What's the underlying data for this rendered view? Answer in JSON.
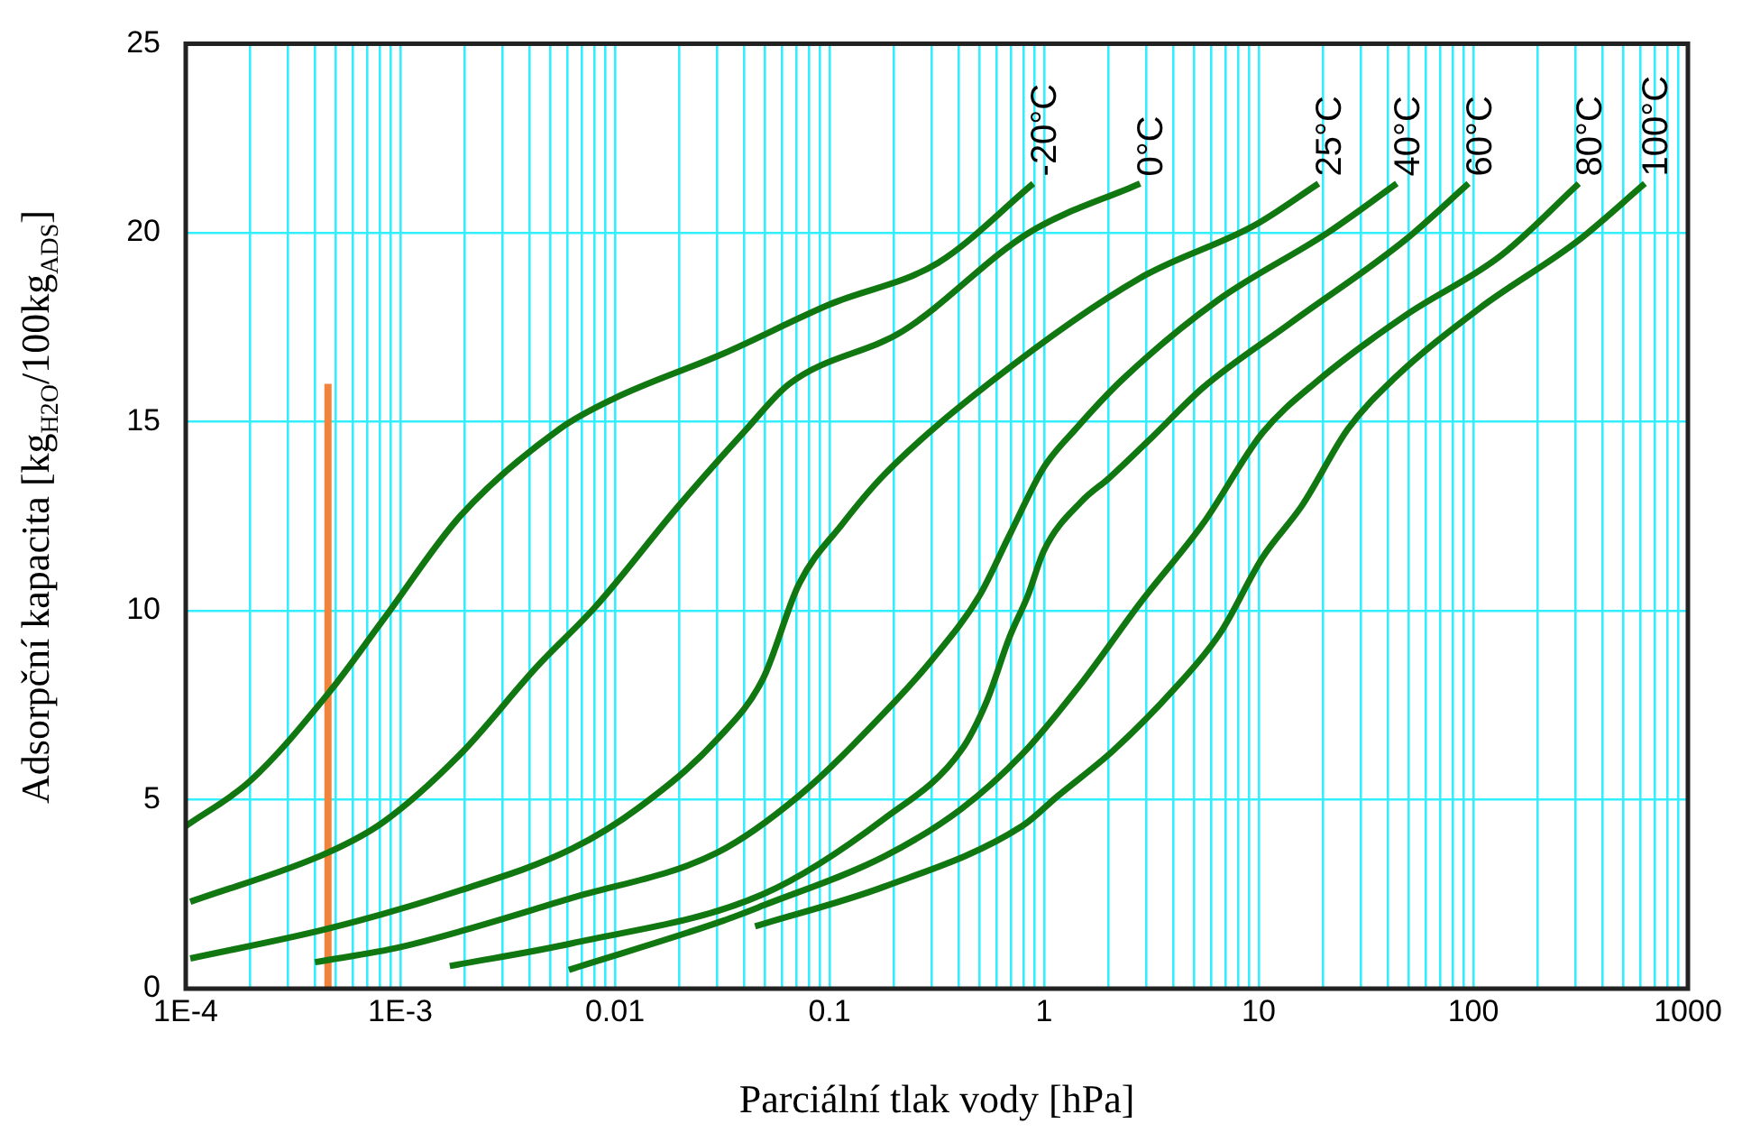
{
  "chart_data": {
    "type": "line",
    "xlabel": "Parciální tlak vody [hPa]",
    "ylabel": "Adsorpční kapacita [kg$_{H2O}$/100kg$_{ADS}$]",
    "log": "x",
    "grid": true,
    "legend": false,
    "marker": "none",
    "line_style": "solid",
    "xlim": [
      0.0001,
      1000
    ],
    "ylim": [
      0,
      25
    ],
    "yticks": [
      0,
      5,
      10,
      15,
      20,
      25
    ],
    "xticks": [
      {
        "value": 0.0001,
        "label": "1E-4"
      },
      {
        "value": 0.0002,
        "label": null
      },
      {
        "value": 0.0003,
        "label": null
      },
      {
        "value": 0.0004,
        "label": null
      },
      {
        "value": 0.0005,
        "label": null
      },
      {
        "value": 0.0006,
        "label": null
      },
      {
        "value": 0.0007,
        "label": null
      },
      {
        "value": 0.0008,
        "label": null
      },
      {
        "value": 0.0009,
        "label": null
      },
      {
        "value": 0.001,
        "label": "1E-3"
      },
      {
        "value": 0.002,
        "label": null
      },
      {
        "value": 0.003,
        "label": null
      },
      {
        "value": 0.004,
        "label": null
      },
      {
        "value": 0.005,
        "label": null
      },
      {
        "value": 0.006,
        "label": null
      },
      {
        "value": 0.007,
        "label": null
      },
      {
        "value": 0.008,
        "label": null
      },
      {
        "value": 0.009,
        "label": null
      },
      0.01,
      {
        "value": 0.02,
        "label": null
      },
      {
        "value": 0.03,
        "label": null
      },
      {
        "value": 0.04,
        "label": null
      },
      {
        "value": 0.05,
        "label": null
      },
      {
        "value": 0.06,
        "label": null
      },
      {
        "value": 0.07,
        "label": null
      },
      {
        "value": 0.08,
        "label": null
      },
      {
        "value": 0.09,
        "label": null
      },
      0.1,
      {
        "value": 0.2,
        "label": null
      },
      {
        "value": 0.3,
        "label": null
      },
      {
        "value": 0.4,
        "label": null
      },
      {
        "value": 0.5,
        "label": null
      },
      {
        "value": 0.6,
        "label": null
      },
      {
        "value": 0.7,
        "label": null
      },
      {
        "value": 0.8,
        "label": null
      },
      {
        "value": 0.9,
        "label": null
      },
      1,
      {
        "value": 2,
        "label": null
      },
      {
        "value": 3,
        "label": null
      },
      {
        "value": 4,
        "label": null
      },
      {
        "value": 5,
        "label": null
      },
      {
        "value": 6,
        "label": null
      },
      {
        "value": 7,
        "label": null
      },
      {
        "value": 8,
        "label": null
      },
      {
        "value": 9,
        "label": null
      },
      10,
      {
        "value": 20,
        "label": null
      },
      {
        "value": 30,
        "label": null
      },
      {
        "value": 40,
        "label": null
      },
      {
        "value": 50,
        "label": null
      },
      {
        "value": 60,
        "label": null
      },
      {
        "value": 70,
        "label": null
      },
      {
        "value": 80,
        "label": null
      },
      {
        "value": 90,
        "label": null
      },
      100,
      {
        "value": 200,
        "label": null
      },
      {
        "value": 300,
        "label": null
      },
      {
        "value": 400,
        "label": null
      },
      {
        "value": 500,
        "label": null
      },
      {
        "value": 600,
        "label": null
      },
      {
        "value": 700,
        "label": null
      },
      {
        "value": 800,
        "label": null
      },
      {
        "value": 900,
        "label": null
      },
      1000
    ],
    "series": [
      {
        "name": "-20°C",
        "color": "#117711",
        "x": [
          0.0001,
          0.0002,
          0.00046,
          0.00083,
          0.0019,
          0.0055,
          0.0098,
          0.032,
          0.1,
          0.32,
          0.89
        ],
        "values": [
          4.3,
          5.5,
          7.8,
          9.75,
          12.5,
          14.8,
          15.6,
          16.8,
          18.1,
          19.2,
          21.3
        ]
      },
      {
        "name": "0°C",
        "color": "#117711",
        "x": [
          0.000105,
          0.00046,
          0.00083,
          0.0019,
          0.0043,
          0.0081,
          0.02,
          0.041,
          0.065,
          0.22,
          0.85,
          2.8
        ],
        "values": [
          2.3,
          3.6,
          4.4,
          6.2,
          8.5,
          10.1,
          12.8,
          14.8,
          16.0,
          17.4,
          20.0,
          21.3
        ]
      },
      {
        "name": "25°C",
        "color": "#117711",
        "x": [
          0.000105,
          0.00047,
          0.0019,
          0.0063,
          0.013,
          0.03,
          0.049,
          0.072,
          0.115,
          0.18,
          0.58,
          2.8,
          9.6,
          19
        ],
        "values": [
          0.8,
          1.6,
          2.6,
          3.7,
          4.8,
          6.6,
          8.2,
          10.7,
          12.3,
          13.6,
          16.1,
          18.8,
          20.2,
          21.3
        ]
      },
      {
        "name": "40°C",
        "color": "#117711",
        "x": [
          0.0004,
          0.001,
          0.0063,
          0.03,
          0.072,
          0.18,
          0.3,
          0.5,
          0.69,
          1.0,
          1.4,
          2.3,
          6.4,
          21,
          44
        ],
        "values": [
          0.7,
          1.1,
          2.4,
          3.6,
          5.1,
          7.3,
          8.7,
          10.4,
          12.0,
          13.8,
          14.8,
          16.1,
          18.2,
          20.0,
          21.3
        ]
      },
      {
        "name": "60°C",
        "color": "#117711",
        "x": [
          0.0017,
          0.0063,
          0.049,
          0.18,
          0.41,
          0.54,
          0.69,
          0.84,
          1.0,
          1.5,
          2.0,
          3.2,
          5.5,
          14,
          48,
          95
        ],
        "values": [
          0.6,
          1.2,
          2.5,
          4.5,
          6.3,
          7.6,
          9.3,
          10.4,
          11.6,
          12.9,
          13.5,
          14.6,
          15.9,
          17.6,
          19.8,
          21.3
        ]
      },
      {
        "name": "80°C",
        "color": "#117711",
        "x": [
          0.0061,
          0.032,
          0.049,
          0.18,
          0.41,
          0.79,
          1.5,
          2.8,
          5.5,
          10.4,
          19,
          48,
          135,
          310
        ],
        "values": [
          0.5,
          1.8,
          2.2,
          3.5,
          4.75,
          6.2,
          8.1,
          10.2,
          12.3,
          14.7,
          16.1,
          17.8,
          19.4,
          21.3
        ]
      },
      {
        "name": "100°C",
        "color": "#117711",
        "x": [
          0.045,
          0.18,
          0.79,
          1.16,
          2.1,
          4.0,
          6.6,
          10.4,
          16,
          26,
          42,
          107,
          310,
          630
        ],
        "values": [
          1.65,
          2.7,
          4.3,
          5.1,
          6.3,
          7.9,
          9.4,
          11.4,
          12.8,
          14.8,
          16.1,
          18.0,
          19.8,
          21.3
        ]
      },
      {
        "color": "#f0843c",
        "x": [
          0.00046,
          0.00046
        ],
        "values": [
          0,
          16
        ]
      }
    ]
  }
}
